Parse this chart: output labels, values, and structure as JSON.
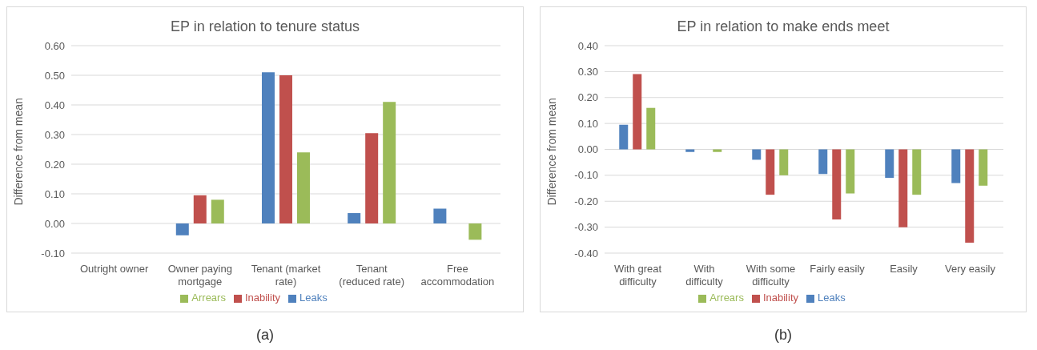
{
  "chart_data": [
    {
      "type": "bar",
      "title": "EP in relation to tenure status",
      "ylabel": "Difference from mean",
      "categories": [
        "Outright owner",
        "Owner paying mortgage",
        "Tenant (market rate)",
        "Tenant (reduced rate)",
        "Free accommodation"
      ],
      "series": [
        {
          "name": "Leaks",
          "color": "#4f81bd",
          "values": [
            0,
            -0.04,
            0.51,
            0.035,
            0.05
          ]
        },
        {
          "name": "Inability",
          "color": "#c0504d",
          "values": [
            0,
            0.095,
            0.5,
            0.305,
            0
          ]
        },
        {
          "name": "Arrears",
          "color": "#9bbb59",
          "values": [
            0,
            0.08,
            0.24,
            0.41,
            -0.055
          ]
        }
      ],
      "ylim": [
        -0.1,
        0.6
      ],
      "yticks": [
        {
          "value": -0.1,
          "label": "-0.10"
        },
        {
          "value": 0,
          "label": "0.00"
        },
        {
          "value": 0.1,
          "label": "0.10"
        },
        {
          "value": 0.2,
          "label": "0.20"
        },
        {
          "value": 0.3,
          "label": "0.30"
        },
        {
          "value": 0.4,
          "label": "0.40"
        },
        {
          "value": 0.5,
          "label": "0.50"
        },
        {
          "value": 0.6,
          "label": "0.60"
        }
      ],
      "grid": "y",
      "legend": "bottom",
      "annotations": [
        "(a)"
      ]
    },
    {
      "type": "bar",
      "title": "EP in relation to make ends meet",
      "ylabel": "Difference from mean",
      "categories": [
        "With great difficulty",
        "With difficulty",
        "With some difficulty",
        "Fairly easily",
        "Easily",
        "Very easily"
      ],
      "series": [
        {
          "name": "Leaks",
          "color": "#4f81bd",
          "values": [
            0.095,
            -0.01,
            -0.04,
            -0.095,
            -0.11,
            -0.13
          ]
        },
        {
          "name": "Inability",
          "color": "#c0504d",
          "values": [
            0.29,
            0,
            -0.175,
            -0.27,
            -0.3,
            -0.36
          ]
        },
        {
          "name": "Arrears",
          "color": "#9bbb59",
          "values": [
            0.16,
            -0.01,
            -0.1,
            -0.17,
            -0.175,
            -0.14
          ]
        }
      ],
      "ylim": [
        -0.4,
        0.4
      ],
      "yticks": [
        {
          "value": -0.4,
          "label": "-0.40"
        },
        {
          "value": -0.3,
          "label": "-0.30"
        },
        {
          "value": -0.2,
          "label": "-0.20"
        },
        {
          "value": -0.1,
          "label": "-0.10"
        },
        {
          "value": 0,
          "label": "0.00"
        },
        {
          "value": 0.1,
          "label": "0.10"
        },
        {
          "value": 0.2,
          "label": "0.20"
        },
        {
          "value": 0.3,
          "label": "0.30"
        },
        {
          "value": 0.4,
          "label": "0.40"
        }
      ],
      "grid": "y",
      "legend": "bottom",
      "annotations": [
        "(b)"
      ]
    }
  ]
}
